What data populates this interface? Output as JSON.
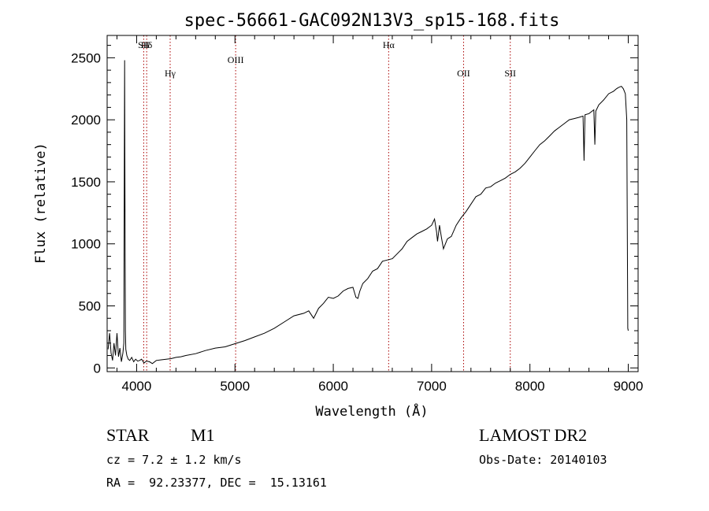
{
  "chart_data": {
    "type": "line",
    "title": "spec-56661-GAC092N13V3_sp15-168.fits",
    "xlabel": "Wavelength (Å)",
    "ylabel": "Flux (relative)",
    "xlim": [
      3700,
      9100
    ],
    "ylim": [
      -30,
      2680
    ],
    "xticks": [
      4000,
      5000,
      6000,
      7000,
      8000,
      9000
    ],
    "yticks": [
      0,
      500,
      1000,
      1500,
      2000,
      2500
    ],
    "grid": false,
    "line_color": "#000000",
    "marker_color": "#aa0000",
    "line_markers": [
      {
        "label": "Hδ",
        "x": 4102
      },
      {
        "label": "SII",
        "x": 4072
      },
      {
        "label": "Hγ",
        "x": 4341
      },
      {
        "label": "OIII",
        "x": 5007
      },
      {
        "label": "Hα",
        "x": 6563
      },
      {
        "label": "OII",
        "x": 7325
      },
      {
        "label": "SII",
        "x": 7800
      }
    ],
    "series": [
      {
        "x": [
          3710,
          3725,
          3740,
          3755,
          3770,
          3785,
          3800,
          3815,
          3830,
          3845,
          3860,
          3870,
          3878,
          3882,
          3886,
          3890,
          3900,
          3915,
          3930,
          3950,
          3970,
          3990,
          4010,
          4030,
          4050,
          4075,
          4100,
          4130,
          4160,
          4200,
          4250,
          4300,
          4350,
          4400,
          4450,
          4500,
          4600,
          4700,
          4800,
          4900,
          5000,
          5100,
          5200,
          5300,
          5400,
          5500,
          5600,
          5700,
          5750,
          5800,
          5850,
          5900,
          5950,
          6000,
          6050,
          6100,
          6150,
          6200,
          6230,
          6250,
          6270,
          6300,
          6350,
          6400,
          6450,
          6500,
          6550,
          6600,
          6650,
          6700,
          6750,
          6800,
          6850,
          6900,
          6950,
          7000,
          7030,
          7050,
          7060,
          7080,
          7100,
          7120,
          7140,
          7160,
          7180,
          7200,
          7250,
          7300,
          7350,
          7400,
          7450,
          7500,
          7550,
          7600,
          7650,
          7700,
          7750,
          7800,
          7850,
          7900,
          7950,
          8000,
          8050,
          8100,
          8150,
          8200,
          8250,
          8300,
          8350,
          8400,
          8450,
          8500,
          8540,
          8550,
          8560,
          8600,
          8650,
          8660,
          8670,
          8700,
          8750,
          8800,
          8850,
          8880,
          8900,
          8930,
          8950,
          8970,
          8985,
          8995,
          9000
        ],
        "y": [
          150,
          280,
          120,
          60,
          200,
          100,
          280,
          90,
          160,
          50,
          120,
          200,
          2480,
          1200,
          300,
          150,
          100,
          70,
          60,
          85,
          50,
          70,
          55,
          60,
          70,
          40,
          55,
          50,
          35,
          60,
          65,
          70,
          75,
          85,
          90,
          100,
          115,
          140,
          160,
          170,
          195,
          220,
          250,
          280,
          320,
          370,
          420,
          440,
          460,
          400,
          480,
          520,
          570,
          560,
          580,
          620,
          640,
          650,
          570,
          560,
          620,
          680,
          720,
          780,
          800,
          860,
          870,
          880,
          920,
          960,
          1020,
          1050,
          1080,
          1100,
          1120,
          1150,
          1200,
          1100,
          1020,
          1150,
          1050,
          960,
          1000,
          1040,
          1050,
          1060,
          1150,
          1210,
          1260,
          1320,
          1380,
          1400,
          1450,
          1460,
          1490,
          1510,
          1530,
          1560,
          1580,
          1610,
          1650,
          1700,
          1750,
          1800,
          1830,
          1870,
          1910,
          1940,
          1970,
          2000,
          2010,
          2020,
          2030,
          1670,
          2040,
          2050,
          2080,
          1800,
          2070,
          2120,
          2160,
          2210,
          2230,
          2250,
          2260,
          2270,
          2250,
          2210,
          2000,
          320,
          300
        ]
      }
    ]
  },
  "footer": {
    "object_class": "STAR",
    "subclass": "M1",
    "redshift": "cz = 7.2 ± 1.2 km/s",
    "coords": "RA =  92.23377, DEC =  15.13161",
    "survey": "LAMOST DR2",
    "obs_date": "Obs-Date: 20140103"
  }
}
